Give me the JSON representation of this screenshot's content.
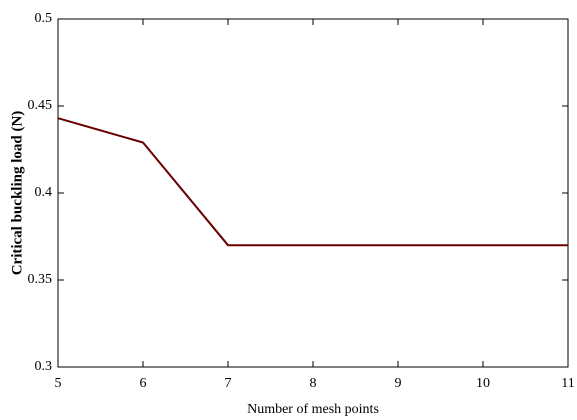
{
  "chart_data": {
    "type": "line",
    "x_label": "Number of mesh points",
    "y_label": "Critical buckling load (N)",
    "x": [
      5,
      6,
      7,
      8,
      9,
      10,
      11
    ],
    "values": [
      0.443,
      0.429,
      0.37,
      0.37,
      0.37,
      0.37,
      0.37
    ],
    "color": "#6b0000",
    "xlim": [
      5,
      11
    ],
    "xticks": [
      5,
      6,
      7,
      8,
      9,
      10,
      11
    ],
    "ylim": [
      0.3,
      0.5
    ],
    "yticks": [
      0.3,
      0.35,
      0.4,
      0.45,
      0.5
    ],
    "grid": false
  }
}
